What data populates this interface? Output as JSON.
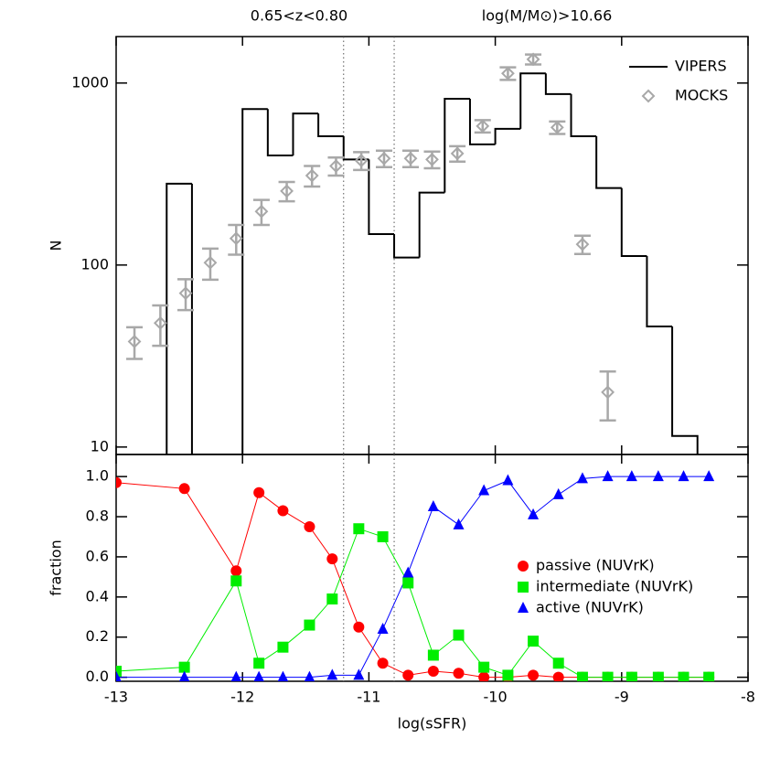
{
  "chart_data": [
    {
      "type": "histogram",
      "titles": [
        "0.65<z<0.80",
        "log(M/M⊙)>10.66"
      ],
      "ylabel": "N",
      "yscale": "log",
      "xlim": [
        -13,
        -8
      ],
      "xticks": [
        -13,
        -12,
        -11,
        -10,
        -9,
        -8
      ],
      "ylim": [
        9.1,
        1800
      ],
      "yticks": [
        10,
        100,
        1000
      ],
      "vlines": [
        -11.2,
        -10.8
      ],
      "legend": "upper right",
      "series": [
        {
          "name": "VIPERS",
          "type": "step",
          "color": "#000000",
          "bins": [
            -12.6,
            -12.4,
            -12.2,
            -12.0,
            -11.8,
            -11.6,
            -11.4,
            -11.2,
            -11.0,
            -10.8,
            -10.6,
            -10.4,
            -10.2,
            -10.0,
            -9.8,
            -9.6,
            -9.4,
            -9.2,
            -9.0,
            -8.8,
            -8.6,
            -8.4
          ],
          "values": [
            280,
            0,
            0,
            720,
            400,
            680,
            510,
            380,
            148,
            110,
            250,
            820,
            460,
            560,
            1130,
            870,
            510,
            265,
            112,
            46,
            11.5
          ]
        },
        {
          "name": "MOCKS",
          "type": "errorbar",
          "color": "#a8a8a8",
          "x": [
            -12.855,
            -12.65,
            -12.45,
            -12.255,
            -12.05,
            -11.85,
            -11.65,
            -11.45,
            -11.26,
            -11.06,
            -10.88,
            -10.67,
            -10.5,
            -10.3,
            -10.1,
            -9.9,
            -9.7,
            -9.51,
            -9.31,
            -9.11
          ],
          "values": [
            38,
            48,
            70,
            103,
            140,
            197,
            255,
            310,
            350,
            375,
            385,
            385,
            380,
            410,
            580,
            1130,
            1350,
            570,
            130,
            20
          ],
          "errors": [
            7.5,
            12,
            13.5,
            20,
            26,
            31,
            31,
            40,
            40,
            42,
            40,
            40,
            40,
            40,
            45,
            90,
            85,
            45,
            15,
            6
          ]
        }
      ]
    },
    {
      "type": "line",
      "xlabel": "log(sSFR)",
      "ylabel": "fraction",
      "xlim": [
        -13,
        -8
      ],
      "xticks": [
        -13,
        -12,
        -11,
        -10,
        -9,
        -8
      ],
      "ylim": [
        -0.02,
        1.11
      ],
      "yticks": [
        {
          "value": 0,
          "label": "0.0"
        },
        0.2,
        0.4,
        0.6,
        0.8,
        {
          "value": 1,
          "label": "1.0"
        }
      ],
      "vlines": [
        -11.2,
        -10.8
      ],
      "legend": "center right",
      "x": [
        -13,
        -12.46,
        -12.05,
        -11.87,
        -11.68,
        -11.47,
        -11.29,
        -11.08,
        -10.89,
        -10.69,
        -10.49,
        -10.29,
        -10.09,
        -9.9,
        -9.7,
        -9.5,
        -9.31,
        -9.11,
        -8.92,
        -8.71,
        -8.51,
        -8.31
      ],
      "series": [
        {
          "name": "passive (NUVrK)",
          "color": "#ff0000",
          "marker": "circle",
          "values": [
            0.97,
            0.94,
            0.53,
            0.92,
            0.83,
            0.75,
            0.59,
            0.25,
            0.07,
            0.01,
            0.03,
            0.02,
            0.0,
            0.0,
            0.01,
            0.0,
            0,
            0,
            0,
            0,
            0,
            0
          ]
        },
        {
          "name": "intermediate (NUVrK)",
          "color": "#00ee00",
          "marker": "square",
          "values": [
            0.03,
            0.05,
            0.48,
            0.07,
            0.15,
            0.26,
            0.39,
            0.74,
            0.7,
            0.47,
            0.11,
            0.21,
            0.05,
            0.01,
            0.18,
            0.07,
            0,
            0,
            0,
            0,
            0,
            0
          ]
        },
        {
          "name": "active (NUVrK)",
          "color": "#0000ff",
          "marker": "triangle",
          "values": [
            0,
            0,
            0,
            0,
            0,
            0,
            0.01,
            0.01,
            0.24,
            0.52,
            0.85,
            0.76,
            0.93,
            0.98,
            0.81,
            0.91,
            0.99,
            1,
            1,
            1,
            1,
            1
          ]
        }
      ]
    }
  ]
}
